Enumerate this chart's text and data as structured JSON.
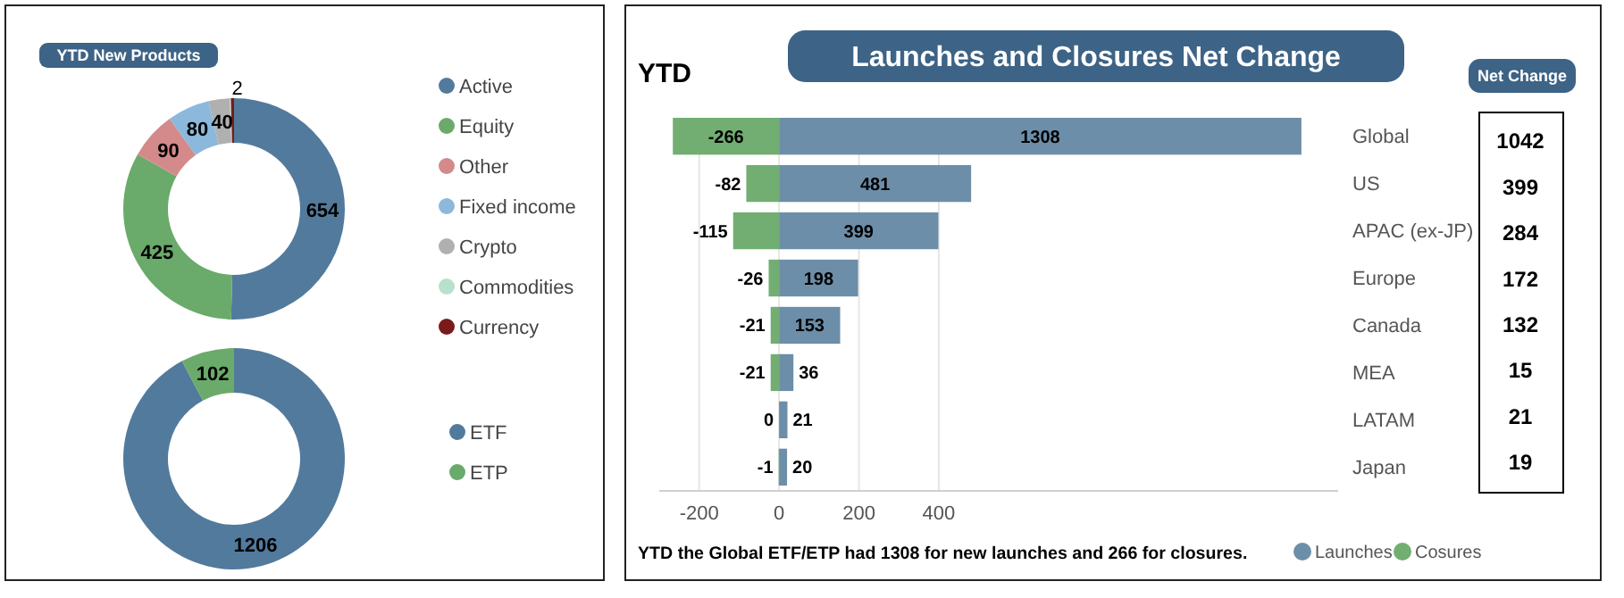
{
  "chart_data": [
    {
      "type": "donut",
      "title": "YTD New Products",
      "categories": [
        "Active",
        "Equity",
        "Other",
        "Fixed income",
        "Crypto",
        "Commodities",
        "Currency"
      ],
      "values": [
        654,
        425,
        90,
        80,
        40,
        2,
        6
      ],
      "value_labels": [
        "654",
        "425",
        "90",
        "80",
        "40",
        "2",
        null
      ],
      "colors": [
        "#527a9c",
        "#6aaa6a",
        "#d48a8a",
        "#8cb8dc",
        "#b0b0b0",
        "#b8e0cc",
        "#7a1a1a"
      ],
      "legend": "right"
    },
    {
      "type": "donut",
      "categories": [
        "ETF",
        "ETP"
      ],
      "values": [
        1206,
        102
      ],
      "colors": [
        "#527a9c",
        "#6aaa6a"
      ],
      "data_labels": true,
      "legend": "right"
    },
    {
      "type": "bar",
      "orientation": "horizontal",
      "title": "Launches and Closures Net Change",
      "subtitle": "YTD",
      "categories": [
        "Global",
        "US",
        "APAC (ex-JP)",
        "Europe",
        "Canada",
        "MEA",
        "LATAM",
        "Japan"
      ],
      "series": [
        {
          "name": "Launches",
          "color": "#6d8ea8",
          "values": [
            1308,
            481,
            399,
            198,
            153,
            36,
            21,
            20
          ]
        },
        {
          "name": "Cosures",
          "color": "#72ae72",
          "values": [
            -266,
            -82,
            -115,
            -26,
            -21,
            -21,
            0,
            -1
          ]
        }
      ],
      "stacked": true,
      "xlim": [
        -300,
        1400
      ],
      "xticks": [
        -200,
        0,
        200,
        400
      ],
      "grid": "x",
      "data_labels": true,
      "legend": "bottom right",
      "annotations": [
        "YTD the Global ETF/ETP had 1308 for new launches and 266 for closures."
      ]
    },
    {
      "type": "other",
      "title": "Net Change",
      "annotations": [
        "1042",
        "399",
        "284",
        "172",
        "132",
        "15",
        "21",
        "19"
      ]
    }
  ]
}
